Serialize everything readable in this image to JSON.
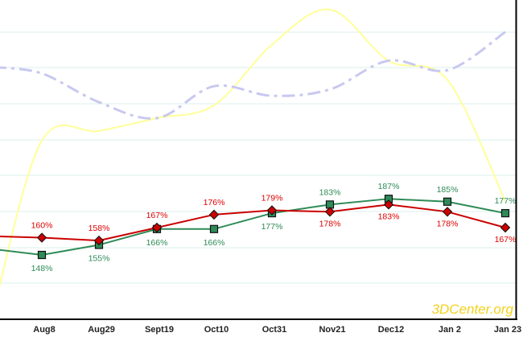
{
  "chart_data": {
    "type": "line",
    "categories": [
      "",
      "Aug8",
      "Aug29",
      "Sept19",
      "Oct10",
      "Oct31",
      "Nov21",
      "Dec12",
      "Jan 2",
      "Jan 23"
    ],
    "ylim": [
      0,
      100
    ],
    "grid": true,
    "series": [
      {
        "color": "#cc0000",
        "marker": "diamond",
        "values": [
          161,
          160,
          158,
          167,
          176,
          179,
          178,
          183,
          178,
          167
        ],
        "labels": [
          "",
          "160%",
          "158%",
          "167%",
          "176%",
          "179%",
          "178%",
          "183%",
          "178%",
          "167%"
        ]
      },
      {
        "color": "#2e8b57",
        "marker": "square",
        "values": [
          152,
          148,
          155,
          166,
          166,
          177,
          183,
          187,
          185,
          177
        ],
        "labels": [
          "",
          "148%",
          "155%",
          "166%",
          "166%",
          "177%",
          "183%",
          "187%",
          "185%",
          "177%"
        ]
      },
      {
        "color": "#ffff99",
        "style": "smooth",
        "values": [
          3,
          56,
          59,
          63,
          67,
          86,
          97,
          81,
          75,
          37
        ]
      },
      {
        "color": "#c8c8f0",
        "style": "dashdot",
        "values": [
          79,
          77,
          68,
          63,
          73,
          70,
          72,
          81,
          78,
          90
        ]
      }
    ],
    "watermark": "3DCenter.org"
  }
}
